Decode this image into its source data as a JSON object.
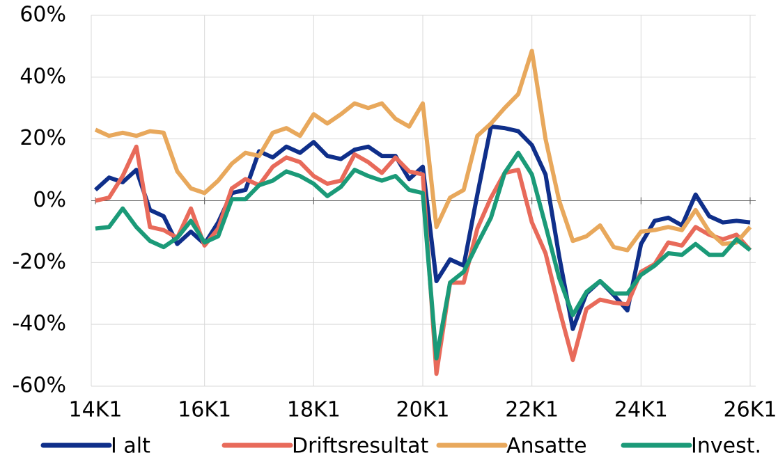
{
  "chart_data": {
    "type": "line",
    "categories": [
      "14K1",
      null,
      null,
      null,
      null,
      null,
      null,
      null,
      "16K1",
      null,
      null,
      null,
      null,
      null,
      null,
      null,
      "18K1",
      null,
      null,
      null,
      null,
      null,
      null,
      null,
      "20K1",
      null,
      null,
      null,
      null,
      null,
      null,
      null,
      "22K1",
      null,
      null,
      null,
      null,
      null,
      null,
      null,
      "24K1",
      null,
      null,
      null,
      null,
      null,
      null,
      null,
      "26K1"
    ],
    "series": [
      {
        "name": "I alt",
        "color": "#0f2f8a",
        "values": [
          3.5,
          7.5,
          6,
          10,
          -3,
          -5,
          -14,
          -10,
          -14,
          -7,
          2.5,
          3.5,
          16,
          14,
          17.5,
          15.5,
          19,
          14.5,
          13.5,
          16.5,
          17.5,
          14.5,
          14.5,
          7,
          11,
          -26,
          -19,
          -21,
          2,
          24,
          23.5,
          22.5,
          18,
          8.5,
          -18,
          -41.5,
          -30,
          -26,
          -30.5,
          -35.5,
          -14,
          -6.5,
          -5.5,
          -8,
          2,
          -5,
          -7,
          -6.5,
          -7
        ]
      },
      {
        "name": "Driftsresultat",
        "color": "#e86a5a",
        "values": [
          0,
          1,
          8,
          17.5,
          -8.5,
          -9.5,
          -12,
          -2.5,
          -14.5,
          -9,
          4,
          7,
          5,
          11,
          14,
          12.5,
          8,
          5.5,
          6.5,
          15,
          12.5,
          9,
          14,
          9.5,
          8.5,
          -56,
          -26.5,
          -26.5,
          -9,
          1,
          9,
          10,
          -7,
          -17,
          -35,
          -51.5,
          -35,
          -32,
          -33,
          -33.5,
          -23,
          -20.5,
          -13.5,
          -14.5,
          -8.5,
          -11,
          -12.5,
          -11,
          -16
        ]
      },
      {
        "name": "Ansatte",
        "color": "#e8a85c",
        "values": [
          23,
          21,
          22,
          21,
          22.5,
          22,
          9.5,
          4,
          2.5,
          6.5,
          12,
          15.5,
          14.5,
          22,
          23.5,
          21,
          28,
          25,
          28,
          31.5,
          30,
          31.5,
          26.5,
          24,
          31.5,
          -8.5,
          1,
          3.5,
          21,
          25,
          30,
          34.5,
          48.5,
          20,
          0,
          -13,
          -11.5,
          -8,
          -15,
          -16,
          -10,
          -9.5,
          -8.5,
          -9.5,
          -3,
          -10,
          -14,
          -13.5,
          -8.5
        ]
      },
      {
        "name": "Invest.",
        "color": "#1b9a78",
        "values": [
          -9,
          -8.5,
          -2.5,
          -8.5,
          -13,
          -15,
          -12,
          -6.5,
          -13.5,
          -11.5,
          0.5,
          0.5,
          5,
          6.5,
          9.5,
          8,
          5.5,
          1.5,
          4.5,
          10,
          8,
          6.5,
          8,
          3.5,
          2.5,
          -51,
          -26.5,
          -23,
          -14,
          -5.5,
          9,
          15.5,
          8.5,
          -8,
          -25,
          -37,
          -29.5,
          -26,
          -30,
          -30,
          -24,
          -21,
          -17,
          -17.5,
          -14,
          -17.5,
          -17.5,
          -12.5,
          -16
        ]
      }
    ],
    "ylim": [
      -60,
      60
    ],
    "yticks": [
      {
        "value": -60,
        "label": "-60%"
      },
      {
        "value": -40,
        "label": "-40%"
      },
      {
        "value": -20,
        "label": "-20%"
      },
      {
        "value": 0,
        "label": "0%"
      },
      {
        "value": 20,
        "label": "20%"
      },
      {
        "value": 40,
        "label": "40%"
      },
      {
        "value": 60,
        "label": "60%"
      }
    ],
    "grid": true,
    "legend": "bottom"
  }
}
